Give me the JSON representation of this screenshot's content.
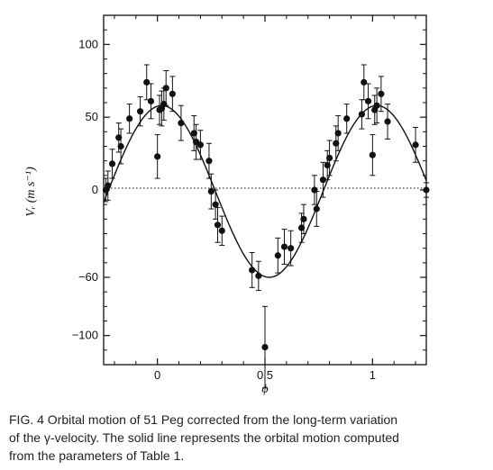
{
  "chart_data": {
    "type": "scatter",
    "ylabel": "Vᵣ (m s⁻¹)",
    "xlabel": "ϕ",
    "xlim": [
      -0.25,
      1.25
    ],
    "ylim": [
      -120,
      120
    ],
    "xticks": [
      0,
      0.5,
      1
    ],
    "xtick_labels": [
      "0",
      "0.5",
      "1"
    ],
    "yticks": [
      -100,
      -60,
      0,
      50,
      100
    ],
    "ytick_labels": [
      "−100",
      "−60",
      "0",
      "50",
      "100"
    ],
    "zero_line": "dotted",
    "grid": false,
    "model_curve": {
      "type": "sinusoid",
      "amplitude": 59,
      "offset": -1,
      "peak_phase": 0.02,
      "style": "solid"
    },
    "points": [
      {
        "x": -0.24,
        "y": 0,
        "err": 8
      },
      {
        "x": -0.23,
        "y": 3,
        "err": 10
      },
      {
        "x": -0.21,
        "y": 18,
        "err": 10
      },
      {
        "x": -0.18,
        "y": 36,
        "err": 10
      },
      {
        "x": -0.17,
        "y": 30,
        "err": 12
      },
      {
        "x": -0.13,
        "y": 49,
        "err": 10
      },
      {
        "x": -0.08,
        "y": 54,
        "err": 10
      },
      {
        "x": -0.05,
        "y": 74,
        "err": 12
      },
      {
        "x": -0.03,
        "y": 61,
        "err": 12
      },
      {
        "x": 0.0,
        "y": 23,
        "err": 15
      },
      {
        "x": 0.01,
        "y": 55,
        "err": 10
      },
      {
        "x": 0.02,
        "y": 56,
        "err": 12
      },
      {
        "x": 0.03,
        "y": 59,
        "err": 11
      },
      {
        "x": 0.04,
        "y": 70,
        "err": 12
      },
      {
        "x": 0.07,
        "y": 66,
        "err": 12
      },
      {
        "x": 0.11,
        "y": 46,
        "err": 12
      },
      {
        "x": 0.17,
        "y": 39,
        "err": 12
      },
      {
        "x": 0.18,
        "y": 33,
        "err": 12
      },
      {
        "x": 0.2,
        "y": 31,
        "err": 10
      },
      {
        "x": 0.24,
        "y": 20,
        "err": 12
      },
      {
        "x": 0.25,
        "y": -1,
        "err": 12
      },
      {
        "x": 0.27,
        "y": -10,
        "err": 10
      },
      {
        "x": 0.28,
        "y": -24,
        "err": 12
      },
      {
        "x": 0.3,
        "y": -28,
        "err": 10
      },
      {
        "x": 0.44,
        "y": -55,
        "err": 12
      },
      {
        "x": 0.47,
        "y": -59,
        "err": 10
      },
      {
        "x": 0.5,
        "y": -108,
        "err": 28
      },
      {
        "x": 0.56,
        "y": -45,
        "err": 12
      },
      {
        "x": 0.59,
        "y": -39,
        "err": 12
      },
      {
        "x": 0.62,
        "y": -40,
        "err": 12
      },
      {
        "x": 0.67,
        "y": -26,
        "err": 10
      },
      {
        "x": 0.68,
        "y": -20,
        "err": 10
      },
      {
        "x": 0.73,
        "y": 0,
        "err": 10
      },
      {
        "x": 0.74,
        "y": -13,
        "err": 12
      },
      {
        "x": 0.77,
        "y": 7,
        "err": 12
      },
      {
        "x": 0.79,
        "y": 17,
        "err": 10
      },
      {
        "x": 0.8,
        "y": 22,
        "err": 12
      },
      {
        "x": 0.83,
        "y": 32,
        "err": 12
      },
      {
        "x": 0.84,
        "y": 39,
        "err": 12
      },
      {
        "x": 0.88,
        "y": 49,
        "err": 10
      },
      {
        "x": 0.95,
        "y": 52,
        "err": 10
      },
      {
        "x": 0.96,
        "y": 74,
        "err": 12
      },
      {
        "x": 0.98,
        "y": 61,
        "err": 12
      },
      {
        "x": 1.0,
        "y": 24,
        "err": 14
      },
      {
        "x": 1.01,
        "y": 55,
        "err": 10
      },
      {
        "x": 1.02,
        "y": 58,
        "err": 12
      },
      {
        "x": 1.04,
        "y": 66,
        "err": 12
      },
      {
        "x": 1.07,
        "y": 47,
        "err": 12
      },
      {
        "x": 1.2,
        "y": 31,
        "err": 12
      },
      {
        "x": 1.25,
        "y": 0,
        "err": 5
      }
    ]
  },
  "caption": {
    "line1": "FIG. 4 Orbital motion of 51 Peg corrected from the long-term variation",
    "line2": "of the γ-velocity. The solid line represents the orbital motion computed",
    "line3": "from the parameters of Table 1."
  }
}
